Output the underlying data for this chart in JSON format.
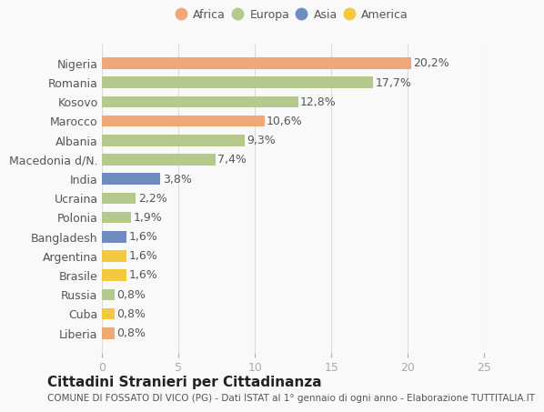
{
  "countries": [
    "Nigeria",
    "Romania",
    "Kosovo",
    "Marocco",
    "Albania",
    "Macedonia d/N.",
    "India",
    "Ucraina",
    "Polonia",
    "Bangladesh",
    "Argentina",
    "Brasile",
    "Russia",
    "Cuba",
    "Liberia"
  ],
  "values": [
    20.2,
    17.7,
    12.8,
    10.6,
    9.3,
    7.4,
    3.8,
    2.2,
    1.9,
    1.6,
    1.6,
    1.6,
    0.8,
    0.8,
    0.8
  ],
  "labels": [
    "20,2%",
    "17,7%",
    "12,8%",
    "10,6%",
    "9,3%",
    "7,4%",
    "3,8%",
    "2,2%",
    "1,9%",
    "1,6%",
    "1,6%",
    "1,6%",
    "0,8%",
    "0,8%",
    "0,8%"
  ],
  "continents": [
    "Africa",
    "Europa",
    "Europa",
    "Africa",
    "Europa",
    "Europa",
    "Asia",
    "Europa",
    "Europa",
    "Asia",
    "America",
    "America",
    "Europa",
    "America",
    "Africa"
  ],
  "continent_colors": {
    "Africa": "#F0A878",
    "Europa": "#B5C98E",
    "Asia": "#6E8EBF",
    "America": "#F5C842"
  },
  "legend_order": [
    "Africa",
    "Europa",
    "Asia",
    "America"
  ],
  "xlim": [
    0,
    25
  ],
  "xticks": [
    0,
    5,
    10,
    15,
    20,
    25
  ],
  "title": "Cittadini Stranieri per Cittadinanza",
  "subtitle": "COMUNE DI FOSSATO DI VICO (PG) - Dati ISTAT al 1° gennaio di ogni anno - Elaborazione TUTTITALIA.IT",
  "bg_color": "#f9f9f9",
  "bar_height": 0.6,
  "label_fontsize": 9,
  "tick_fontsize": 9,
  "title_fontsize": 11,
  "subtitle_fontsize": 7.5
}
